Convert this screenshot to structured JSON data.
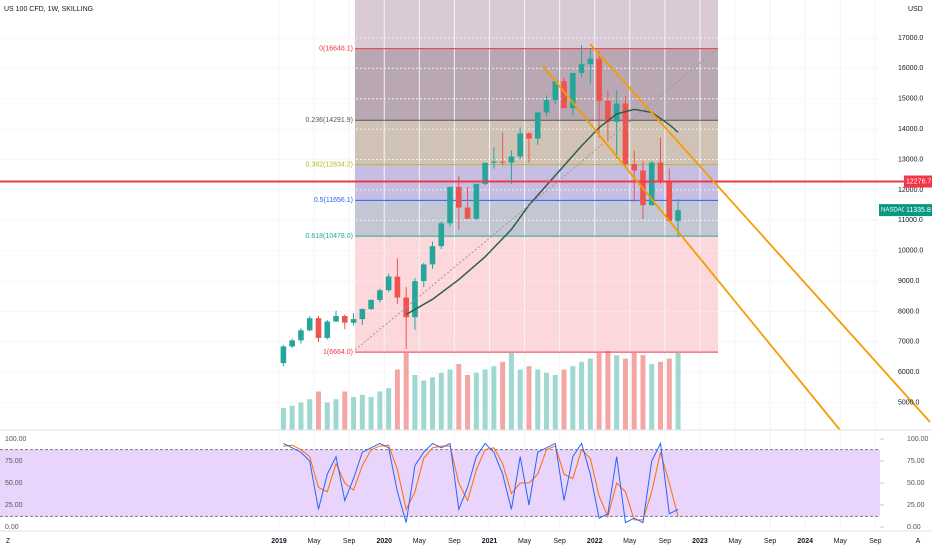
{
  "chart_data": {
    "type": "candlestick",
    "title": "US 100 CFD, 1W, SKILLING",
    "currency": "USD",
    "x": [
      "2019-01",
      "2019-02",
      "2019-03",
      "2019-04",
      "2019-05",
      "2019-06",
      "2019-07",
      "2019-08",
      "2019-09",
      "2019-10",
      "2019-11",
      "2019-12",
      "2020-01",
      "2020-02",
      "2020-03",
      "2020-04",
      "2020-05",
      "2020-06",
      "2020-07",
      "2020-08",
      "2020-09",
      "2020-10",
      "2020-11",
      "2020-12",
      "2021-01",
      "2021-02",
      "2021-03",
      "2021-04",
      "2021-05",
      "2021-06",
      "2021-07",
      "2021-08",
      "2021-09",
      "2021-10",
      "2021-11",
      "2021-12",
      "2022-01",
      "2022-02",
      "2022-03",
      "2022-04",
      "2022-05",
      "2022-06",
      "2022-07",
      "2022-08",
      "2022-09",
      "2022-10"
    ],
    "open": [
      6300,
      6850,
      7050,
      7380,
      7780,
      7130,
      7670,
      7850,
      7630,
      7750,
      8080,
      8380,
      8700,
      9150,
      8460,
      7810,
      9000,
      9550,
      10150,
      10900,
      12100,
      11420,
      11050,
      12200,
      12890,
      12930,
      12900,
      13100,
      13860,
      13690,
      14550,
      14960,
      15580,
      14690,
      15850,
      16140,
      16320,
      14930,
      14240,
      14840,
      12850,
      12640,
      11500,
      12900,
      12270,
      10980
    ],
    "high": [
      6900,
      7100,
      7450,
      7850,
      7850,
      7720,
      8030,
      7900,
      7950,
      8100,
      8400,
      8750,
      9250,
      9750,
      8800,
      9100,
      9600,
      10300,
      10970,
      12100,
      12450,
      12100,
      12200,
      12900,
      13400,
      13880,
      13300,
      14060,
      13900,
      14570,
      15120,
      15570,
      15700,
      15850,
      16770,
      16650,
      16570,
      15270,
      15290,
      15100,
      13300,
      12950,
      12950,
      13720,
      12700,
      11700
    ],
    "low": [
      6200,
      6800,
      6950,
      7350,
      7000,
      7080,
      7650,
      7420,
      7530,
      7560,
      8050,
      8300,
      8650,
      8250,
      6770,
      7400,
      8800,
      9400,
      10050,
      10800,
      10700,
      11080,
      11000,
      12150,
      12700,
      12800,
      12200,
      13000,
      12900,
      13480,
      14420,
      14820,
      14800,
      14450,
      15700,
      15500,
      13720,
      13600,
      13020,
      12710,
      11600,
      11040,
      11500,
      12200,
      10990,
      10440
    ],
    "close": [
      6850,
      7050,
      7380,
      7780,
      7130,
      7670,
      7850,
      7630,
      7750,
      8080,
      8380,
      8700,
      9150,
      8460,
      7810,
      9000,
      9550,
      10150,
      10900,
      12100,
      11420,
      11050,
      12200,
      12890,
      12930,
      12900,
      13100,
      13860,
      13690,
      14550,
      14960,
      15580,
      14690,
      15850,
      16140,
      16320,
      14930,
      14240,
      14840,
      12850,
      12640,
      11500,
      12900,
      12270,
      10980,
      11335
    ],
    "up_color": "#26a69a",
    "down_color": "#ef5350",
    "volume": [
      20,
      22,
      25,
      28,
      35,
      25,
      28,
      35,
      30,
      32,
      30,
      35,
      38,
      55,
      70,
      50,
      45,
      48,
      52,
      55,
      60,
      50,
      52,
      55,
      58,
      62,
      70,
      55,
      58,
      55,
      52,
      50,
      55,
      58,
      62,
      65,
      70,
      72,
      68,
      65,
      70,
      68,
      60,
      62,
      65,
      70
    ],
    "volume_lim": [
      0,
      100
    ],
    "ma": {
      "color": "#2e5f4a",
      "x": [
        "2020-03",
        "2020-06",
        "2020-09",
        "2020-12",
        "2021-03",
        "2021-05",
        "2021-07",
        "2021-09",
        "2021-11",
        "2022-01",
        "2022-03",
        "2022-05",
        "2022-07",
        "2022-09",
        "2022-10"
      ],
      "values": [
        7900,
        8400,
        9050,
        9800,
        10700,
        11500,
        12150,
        12800,
        13450,
        14050,
        14500,
        14650,
        14550,
        14150,
        13900
      ]
    },
    "fib_levels": [
      {
        "price": 16648.1,
        "label": "0(16648.1)",
        "color": "#f23645"
      },
      {
        "price": 14291.9,
        "label": "0.236(14291.9)",
        "color": "#555555"
      },
      {
        "price": 12834.2,
        "label": "0.382(12834.2)",
        "color": "#b8b82a"
      },
      {
        "price": 11656.1,
        "label": "0.5(11656.1)",
        "color": "#2962ff"
      },
      {
        "price": 10478.0,
        "label": "0.618(10478.0)",
        "color": "#22ab94"
      },
      {
        "price": 6664.0,
        "label": "1(6664.0)",
        "color": "#f23645"
      }
    ],
    "hline": {
      "value": 12276.7,
      "color": "#f23645"
    },
    "last": {
      "label": "NASDAQ",
      "value": 11335.8,
      "color": "#089981"
    },
    "ylim": [
      4100,
      18250
    ],
    "yticks": [
      {
        "value": 5000,
        "label": "5000.0"
      },
      {
        "value": 6000,
        "label": "6000.0"
      },
      {
        "value": 7000,
        "label": "7000.0"
      },
      {
        "value": 8000,
        "label": "8000.0"
      },
      {
        "value": 9000,
        "label": "9000.0"
      },
      {
        "value": 10000,
        "label": "10000.0"
      },
      {
        "value": 11000,
        "label": "11000.0"
      },
      {
        "value": 12000,
        "label": "12000.0"
      },
      {
        "value": 13000,
        "label": "13000.0"
      },
      {
        "value": 14000,
        "label": "14000.0"
      },
      {
        "value": 15000,
        "label": "15000.0"
      },
      {
        "value": 16000,
        "label": "16000.0"
      },
      {
        "value": 17000,
        "label": "17000.0"
      }
    ],
    "xticks": [
      {
        "value": "2019-01",
        "label": "2019"
      },
      {
        "value": "2019-05",
        "label": "May"
      },
      {
        "value": "2019-09",
        "label": "Sep"
      },
      {
        "value": "2020-01",
        "label": "2020"
      },
      {
        "value": "2020-05",
        "label": "May"
      },
      {
        "value": "2020-09",
        "label": "Sep"
      },
      {
        "value": "2021-01",
        "label": "2021"
      },
      {
        "value": "2021-05",
        "label": "May"
      },
      {
        "value": "2021-09",
        "label": "Sep"
      },
      {
        "value": "2022-01",
        "label": "2022"
      },
      {
        "value": "2022-05",
        "label": "May"
      },
      {
        "value": "2022-09",
        "label": "Sep"
      },
      {
        "value": "2023-01",
        "label": "2023"
      },
      {
        "value": "2023-05",
        "label": "May"
      },
      {
        "value": "2023-09",
        "label": "Sep"
      },
      {
        "value": "2024-01",
        "label": "2024"
      },
      {
        "value": "2024-05",
        "label": "May"
      },
      {
        "value": "2024-09",
        "label": "Sep"
      }
    ],
    "stoch": {
      "k": {
        "color": "#2962ff",
        "values": [
          95,
          90,
          85,
          75,
          20,
          60,
          80,
          30,
          55,
          85,
          90,
          95,
          90,
          40,
          5,
          70,
          85,
          95,
          90,
          95,
          20,
          45,
          80,
          95,
          85,
          60,
          20,
          80,
          25,
          85,
          90,
          95,
          30,
          80,
          95,
          60,
          10,
          15,
          80,
          5,
          10,
          5,
          75,
          95,
          15,
          20
        ]
      },
      "d": {
        "color": "#ff6d00",
        "values": [
          92,
          93,
          88,
          80,
          45,
          40,
          72,
          50,
          42,
          70,
          88,
          92,
          93,
          65,
          20,
          40,
          78,
          90,
          92,
          92,
          50,
          30,
          65,
          88,
          90,
          72,
          38,
          50,
          50,
          60,
          88,
          92,
          60,
          55,
          88,
          78,
          35,
          12,
          50,
          40,
          8,
          8,
          40,
          85,
          50,
          12
        ]
      },
      "band": [
        88,
        12
      ],
      "band_color": "#e9d5fb",
      "ylim": [
        -4.6,
        110.3
      ],
      "yticks": [
        {
          "value": 0,
          "label": "0.00"
        },
        {
          "value": 25,
          "label": "25.00"
        },
        {
          "value": 50,
          "label": "50.00"
        },
        {
          "value": 75,
          "label": "75.00"
        },
        {
          "value": 100,
          "label": "100.00"
        }
      ]
    },
    "corner_left": "Z",
    "corner_right": "A"
  }
}
